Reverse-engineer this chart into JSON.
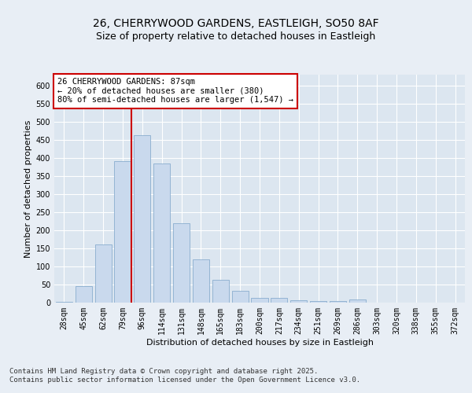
{
  "title_line1": "26, CHERRYWOOD GARDENS, EASTLEIGH, SO50 8AF",
  "title_line2": "Size of property relative to detached houses in Eastleigh",
  "xlabel": "Distribution of detached houses by size in Eastleigh",
  "ylabel": "Number of detached properties",
  "categories": [
    "28sqm",
    "45sqm",
    "62sqm",
    "79sqm",
    "96sqm",
    "114sqm",
    "131sqm",
    "148sqm",
    "165sqm",
    "183sqm",
    "200sqm",
    "217sqm",
    "234sqm",
    "251sqm",
    "269sqm",
    "286sqm",
    "303sqm",
    "320sqm",
    "338sqm",
    "355sqm",
    "372sqm"
  ],
  "values": [
    2,
    45,
    160,
    390,
    462,
    385,
    220,
    120,
    63,
    33,
    13,
    13,
    7,
    5,
    5,
    8,
    1,
    0,
    0,
    0,
    0
  ],
  "bar_color": "#c9d9ed",
  "bar_edge_color": "#7ba3c8",
  "vline_color": "#cc0000",
  "annotation_text": "26 CHERRYWOOD GARDENS: 87sqm\n← 20% of detached houses are smaller (380)\n80% of semi-detached houses are larger (1,547) →",
  "annotation_box_color": "#ffffff",
  "annotation_box_edge_color": "#cc0000",
  "ylim": [
    0,
    630
  ],
  "yticks": [
    0,
    50,
    100,
    150,
    200,
    250,
    300,
    350,
    400,
    450,
    500,
    550,
    600
  ],
  "background_color": "#e8eef5",
  "plot_bg_color": "#dce6f0",
  "footer_text": "Contains HM Land Registry data © Crown copyright and database right 2025.\nContains public sector information licensed under the Open Government Licence v3.0.",
  "title_fontsize": 10,
  "subtitle_fontsize": 9,
  "axis_label_fontsize": 8,
  "tick_fontsize": 7,
  "annotation_fontsize": 7.5,
  "footer_fontsize": 6.5
}
